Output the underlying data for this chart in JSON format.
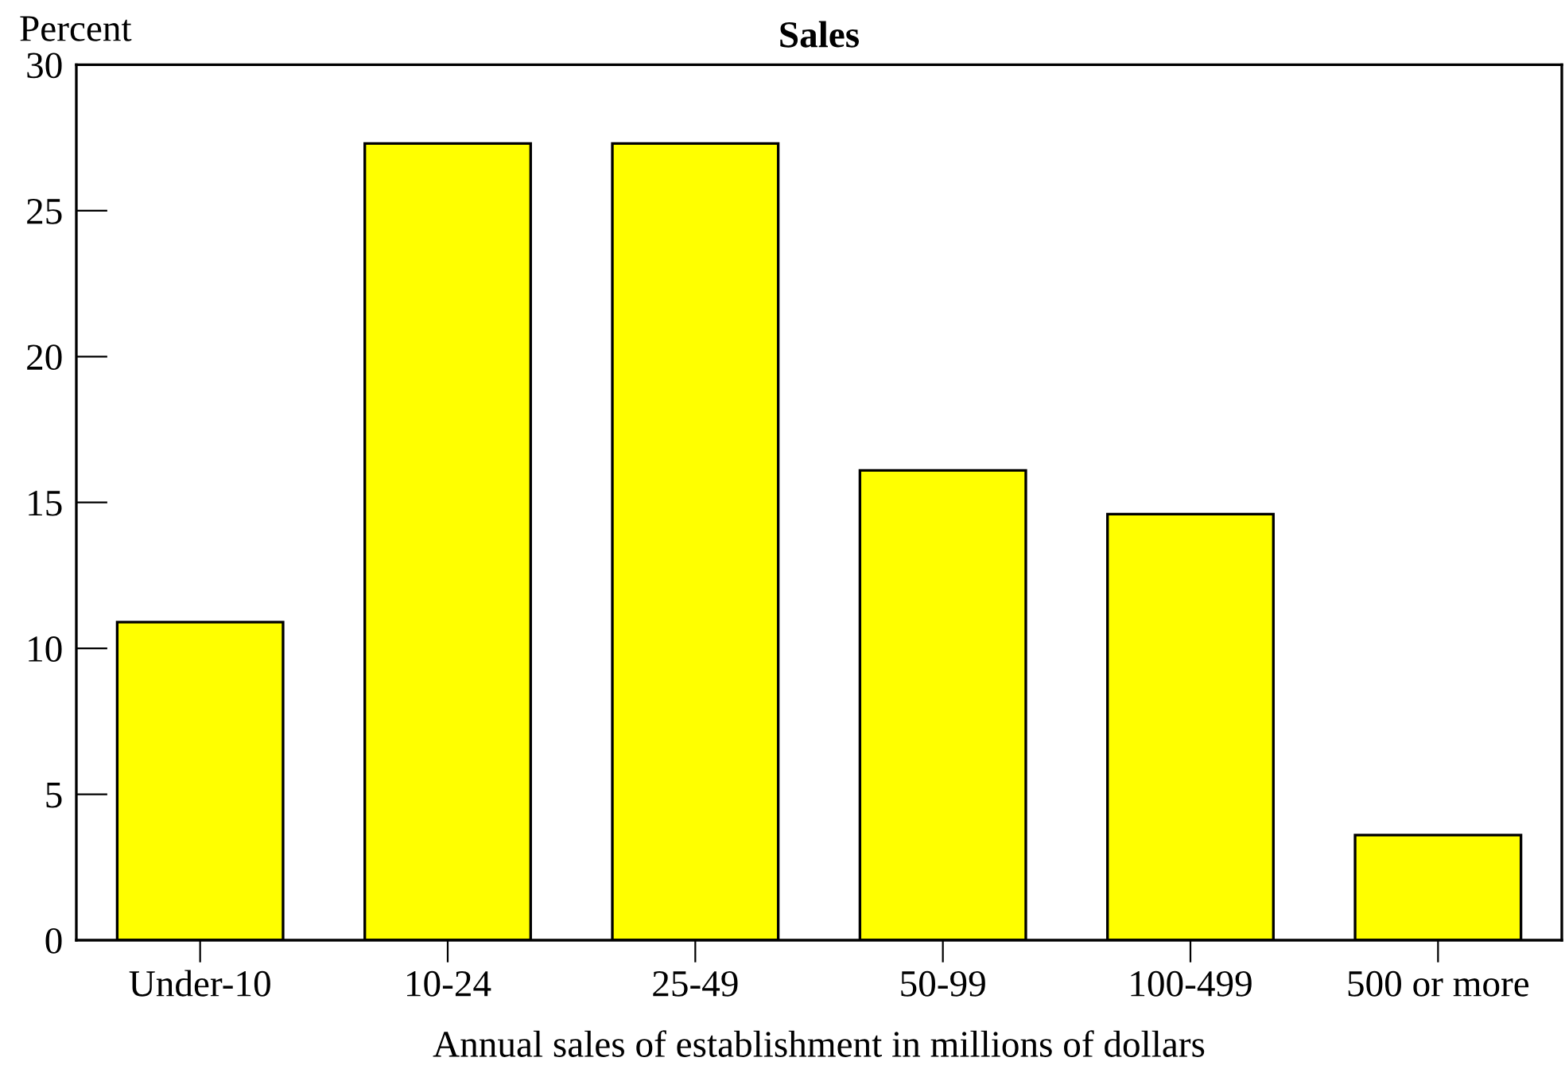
{
  "chart_data": {
    "type": "bar",
    "title": "Sales",
    "ylabel": "Percent",
    "xlabel": "Annual sales of establishment in millions of dollars",
    "categories": [
      "Under-10",
      "10-24",
      "25-49",
      "50-99",
      "100-499",
      "500 or more"
    ],
    "values": [
      10.9,
      27.3,
      27.3,
      16.1,
      14.6,
      3.6
    ],
    "color": "#ffff00",
    "ylim": [
      0,
      30
    ],
    "yticks": [
      0,
      5,
      10,
      15,
      20,
      25,
      30
    ],
    "grid": false,
    "legend": false
  }
}
